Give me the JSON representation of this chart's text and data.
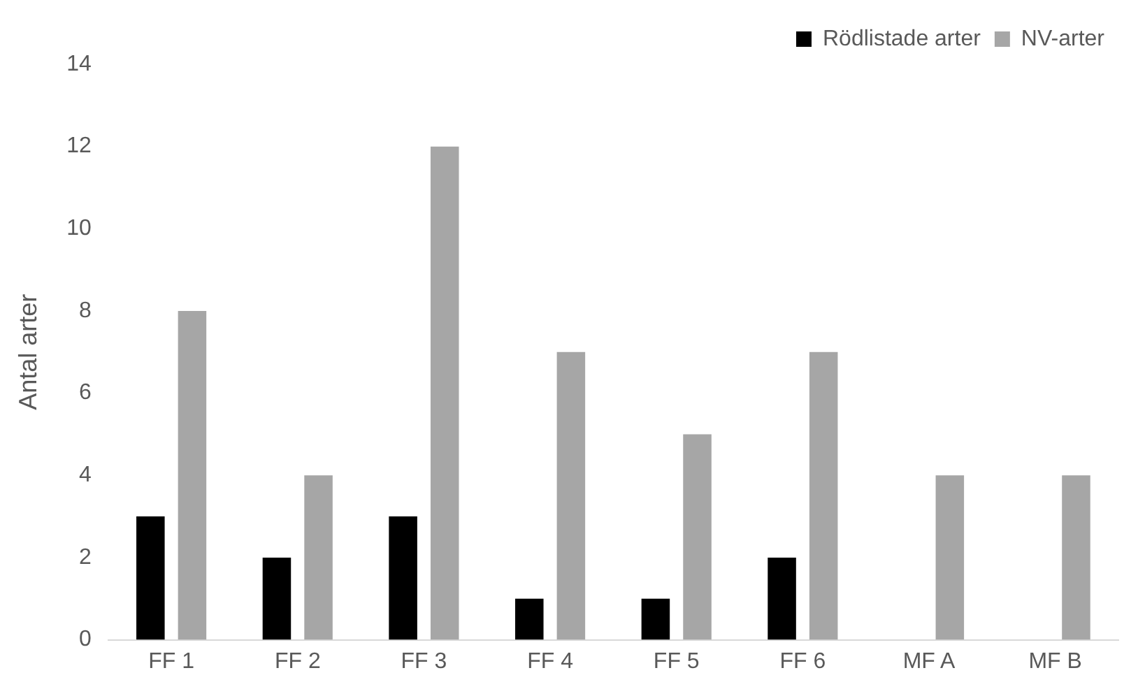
{
  "chart_data": {
    "type": "bar",
    "ylabel": "Antal arter",
    "categories": [
      "FF 1",
      "FF 2",
      "FF 3",
      "FF 4",
      "FF 5",
      "FF 6",
      "MF A",
      "MF B"
    ],
    "series": [
      {
        "name": "Rödlistade arter",
        "color": "#000000",
        "values": [
          3,
          2,
          3,
          1,
          1,
          2,
          0,
          0
        ]
      },
      {
        "name": "NV-arter",
        "color": "#a6a6a6",
        "values": [
          8,
          4,
          12,
          7,
          5,
          7,
          4,
          4
        ]
      }
    ],
    "ylim": [
      0,
      14
    ],
    "yticks": [
      0,
      2,
      4,
      6,
      8,
      10,
      12,
      14
    ],
    "grid": false,
    "legend": "top right"
  }
}
